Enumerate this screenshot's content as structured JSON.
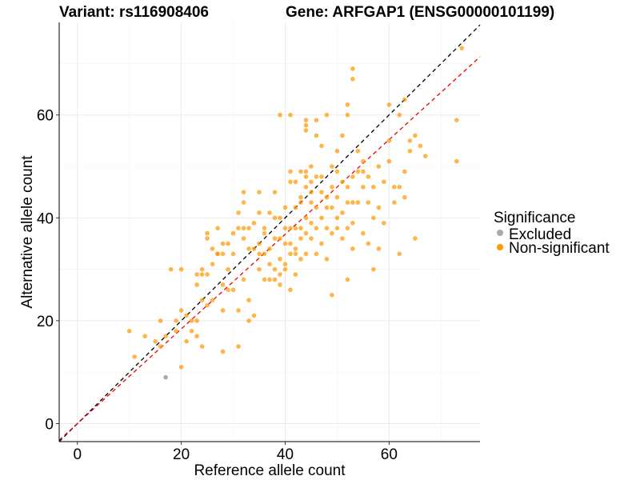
{
  "chart_data": {
    "type": "scatter",
    "title_left": "Variant: rs116908406",
    "title_right": "Gene: ARFGAP1 (ENSG00000101199)",
    "xlabel": "Reference allele count",
    "ylabel": "Alternative allele count",
    "xlim": [
      -3.5,
      77.5
    ],
    "ylim": [
      -3.5,
      78
    ],
    "xticks": [
      0,
      20,
      40,
      60
    ],
    "yticks": [
      0,
      20,
      40,
      60
    ],
    "legend": {
      "title": "Significance",
      "position": "right",
      "entries": [
        {
          "label": "Excluded",
          "color": "#aaaaaa"
        },
        {
          "label": "Non-significant",
          "color": "#ff9900"
        }
      ]
    },
    "reference_lines": [
      {
        "name": "identity",
        "slope": 1.0,
        "intercept": 0,
        "color": "#000000",
        "style": "dashed"
      },
      {
        "name": "fit",
        "slope": 0.92,
        "intercept": 0,
        "color": "#ee0000",
        "style": "dashed"
      }
    ],
    "series": [
      {
        "name": "Excluded",
        "color": "#aaaaaa",
        "points": [
          [
            17,
            9
          ]
        ]
      },
      {
        "name": "Non-significant",
        "color": "#ff9900",
        "points": [
          [
            10,
            18
          ],
          [
            11,
            13
          ],
          [
            13,
            17
          ],
          [
            15,
            16
          ],
          [
            16,
            20
          ],
          [
            16,
            15
          ],
          [
            17,
            17
          ],
          [
            18,
            30
          ],
          [
            19,
            18
          ],
          [
            19,
            20
          ],
          [
            20,
            30
          ],
          [
            20,
            22
          ],
          [
            20,
            11
          ],
          [
            21,
            16
          ],
          [
            21,
            21
          ],
          [
            22,
            18
          ],
          [
            22,
            20
          ],
          [
            23,
            29
          ],
          [
            23,
            27
          ],
          [
            23,
            17
          ],
          [
            23,
            20
          ],
          [
            24,
            15
          ],
          [
            24,
            24
          ],
          [
            24,
            29
          ],
          [
            25,
            37
          ],
          [
            25,
            36
          ],
          [
            25,
            29
          ],
          [
            25,
            23
          ],
          [
            26,
            31
          ],
          [
            26,
            24
          ],
          [
            27,
            33
          ],
          [
            27,
            38
          ],
          [
            27,
            33
          ],
          [
            28,
            27
          ],
          [
            28,
            33
          ],
          [
            28,
            35
          ],
          [
            28,
            22
          ],
          [
            28,
            14
          ],
          [
            29,
            26
          ],
          [
            29,
            35
          ],
          [
            30,
            37
          ],
          [
            30,
            33
          ],
          [
            30,
            26
          ],
          [
            31,
            38
          ],
          [
            31,
            22
          ],
          [
            31,
            15
          ],
          [
            32,
            45
          ],
          [
            32,
            43
          ],
          [
            32,
            38
          ],
          [
            32,
            36
          ],
          [
            32,
            28
          ],
          [
            33,
            38
          ],
          [
            33,
            24
          ],
          [
            33,
            20
          ],
          [
            34,
            39
          ],
          [
            34,
            34
          ],
          [
            34,
            21
          ],
          [
            35,
            35
          ],
          [
            35,
            33
          ],
          [
            35,
            30
          ],
          [
            35,
            45
          ],
          [
            36,
            38
          ],
          [
            36,
            37
          ],
          [
            36,
            33
          ],
          [
            36,
            28
          ],
          [
            37,
            41
          ],
          [
            37,
            34
          ],
          [
            37,
            28
          ],
          [
            38,
            40
          ],
          [
            38,
            36
          ],
          [
            38,
            30
          ],
          [
            38,
            28
          ],
          [
            39,
            40
          ],
          [
            39,
            36
          ],
          [
            39,
            32
          ],
          [
            39,
            29
          ],
          [
            39,
            27
          ],
          [
            39,
            60
          ],
          [
            40,
            38
          ],
          [
            40,
            42
          ],
          [
            40,
            35
          ],
          [
            40,
            31
          ],
          [
            40,
            30
          ],
          [
            41,
            35
          ],
          [
            41,
            33
          ],
          [
            41,
            26
          ],
          [
            41,
            38
          ],
          [
            41,
            60
          ],
          [
            42,
            42
          ],
          [
            42,
            38
          ],
          [
            42,
            34
          ],
          [
            42,
            33
          ],
          [
            42,
            29
          ],
          [
            43,
            38
          ],
          [
            43,
            44
          ],
          [
            43,
            36
          ],
          [
            43,
            32
          ],
          [
            44,
            49
          ],
          [
            44,
            48
          ],
          [
            44,
            46
          ],
          [
            44,
            40
          ],
          [
            44,
            37
          ],
          [
            44,
            33
          ],
          [
            45,
            47
          ],
          [
            45,
            43
          ],
          [
            45,
            39
          ],
          [
            45,
            36
          ],
          [
            46,
            48
          ],
          [
            46,
            42
          ],
          [
            46,
            38
          ],
          [
            46,
            33
          ],
          [
            47,
            40
          ],
          [
            47,
            35
          ],
          [
            47,
            54
          ],
          [
            48,
            44
          ],
          [
            48,
            42
          ],
          [
            48,
            38
          ],
          [
            48,
            32
          ],
          [
            49,
            46
          ],
          [
            49,
            42
          ],
          [
            49,
            37
          ],
          [
            49,
            25
          ],
          [
            50,
            49
          ],
          [
            50,
            44
          ],
          [
            50,
            40
          ],
          [
            50,
            38
          ],
          [
            51,
            47
          ],
          [
            51,
            41
          ],
          [
            51,
            36
          ],
          [
            52,
            46
          ],
          [
            52,
            43
          ],
          [
            52,
            38
          ],
          [
            52,
            28
          ],
          [
            53,
            48
          ],
          [
            53,
            43
          ],
          [
            53,
            39
          ],
          [
            53,
            34
          ],
          [
            54,
            53
          ],
          [
            54,
            49
          ],
          [
            54,
            43
          ],
          [
            55,
            51
          ],
          [
            55,
            46
          ],
          [
            55,
            37
          ],
          [
            56,
            48
          ],
          [
            56,
            43
          ],
          [
            56,
            35
          ],
          [
            57,
            46
          ],
          [
            57,
            40
          ],
          [
            57,
            30
          ],
          [
            58,
            50
          ],
          [
            58,
            42
          ],
          [
            58,
            34
          ],
          [
            59,
            47
          ],
          [
            59,
            39
          ],
          [
            60,
            62
          ],
          [
            60,
            55
          ],
          [
            60,
            51
          ],
          [
            61,
            46
          ],
          [
            61,
            43
          ],
          [
            62,
            60
          ],
          [
            62,
            46
          ],
          [
            62,
            33
          ],
          [
            63,
            63
          ],
          [
            63,
            49
          ],
          [
            63,
            44
          ],
          [
            64,
            55
          ],
          [
            64,
            53
          ],
          [
            65,
            56
          ],
          [
            65,
            36
          ],
          [
            66,
            54
          ],
          [
            67,
            52
          ],
          [
            73,
            59
          ],
          [
            73,
            51
          ],
          [
            74,
            73
          ],
          [
            24,
            30
          ],
          [
            26,
            34
          ],
          [
            29,
            30
          ],
          [
            31,
            41
          ],
          [
            33,
            34
          ],
          [
            35,
            41
          ],
          [
            37,
            31
          ],
          [
            38,
            45
          ],
          [
            41,
            47
          ],
          [
            43,
            43
          ],
          [
            45,
            45
          ],
          [
            47,
            45
          ],
          [
            49,
            50
          ],
          [
            51,
            56
          ],
          [
            53,
            69
          ],
          [
            53,
            67
          ],
          [
            41,
            49
          ],
          [
            42,
            47
          ],
          [
            44,
            59
          ],
          [
            44,
            58
          ],
          [
            44,
            57
          ],
          [
            46,
            56
          ],
          [
            48,
            60
          ],
          [
            52,
            62
          ],
          [
            52,
            60
          ],
          [
            46,
            59
          ],
          [
            47,
            48
          ],
          [
            50,
            53
          ],
          [
            55,
            49
          ],
          [
            45,
            50
          ],
          [
            43,
            49
          ]
        ]
      }
    ]
  }
}
